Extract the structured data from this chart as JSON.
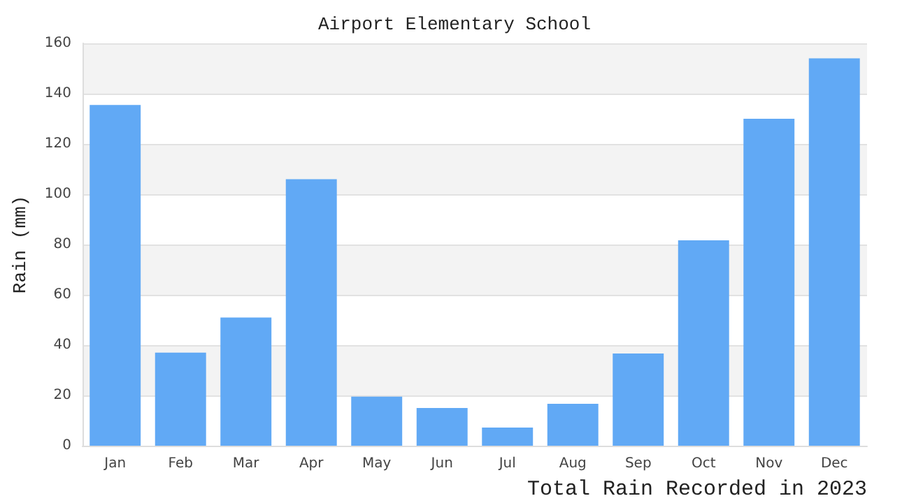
{
  "chart_data": {
    "type": "bar",
    "title": "Airport Elementary School",
    "ylabel": "Rain (mm)",
    "categories": [
      "Jan",
      "Feb",
      "Mar",
      "Apr",
      "May",
      "Jun",
      "Jul",
      "Aug",
      "Sep",
      "Oct",
      "Nov",
      "Dec"
    ],
    "values": [
      135.5,
      37,
      51,
      106,
      19.5,
      15,
      7.2,
      16.7,
      36.7,
      81.7,
      130,
      154
    ],
    "color": "#61a9f5",
    "ylim": [
      0,
      160
    ],
    "yticks": [
      0,
      20,
      40,
      60,
      80,
      100,
      120,
      140,
      160
    ],
    "grid": "y",
    "annotations": [
      "Total Rain Recorded in 2023"
    ]
  }
}
